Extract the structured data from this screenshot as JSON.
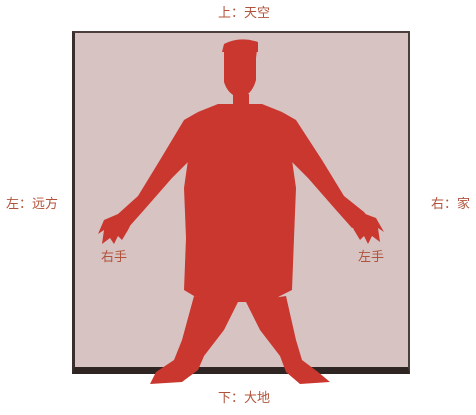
{
  "labels": {
    "top": "上：天空",
    "bottom": "下：大地",
    "left": "左：远方",
    "right": "右：家",
    "right_hand": "右手",
    "left_hand": "左手"
  },
  "colors": {
    "figure": "#c9372f",
    "background": "#d8c3c3",
    "label_text": "#b0533a",
    "frame_edge": "#2f2624"
  }
}
